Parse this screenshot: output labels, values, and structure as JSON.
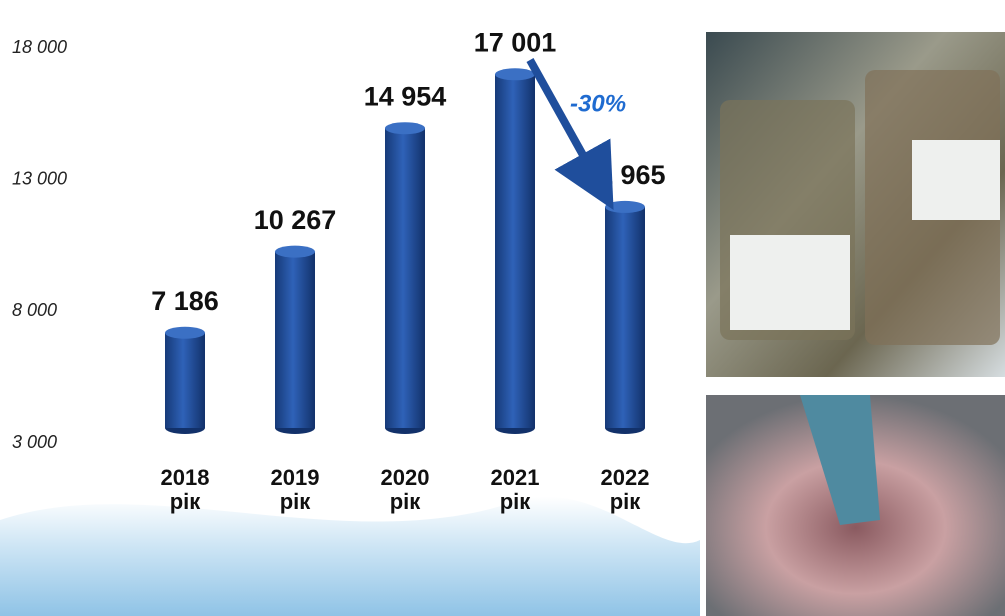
{
  "chart_data": {
    "type": "bar",
    "categories": [
      "2018 рік",
      "2019 рік",
      "2020 рік",
      "2021 рік",
      "2022 рік"
    ],
    "values": [
      7186,
      10267,
      14954,
      17001,
      11965
    ],
    "value_labels": [
      "7 186",
      "10 267",
      "14 954",
      "17 001",
      "11 965"
    ],
    "color": "#1f4e9c",
    "ylim": [
      3000,
      18000
    ],
    "yticks": [
      {
        "value": 3000,
        "label": "3 000"
      },
      {
        "value": 8000,
        "label": "8 000"
      },
      {
        "value": 13000,
        "label": "13 000"
      },
      {
        "value": 18000,
        "label": "18 000"
      }
    ],
    "annotation": "-30%"
  }
}
